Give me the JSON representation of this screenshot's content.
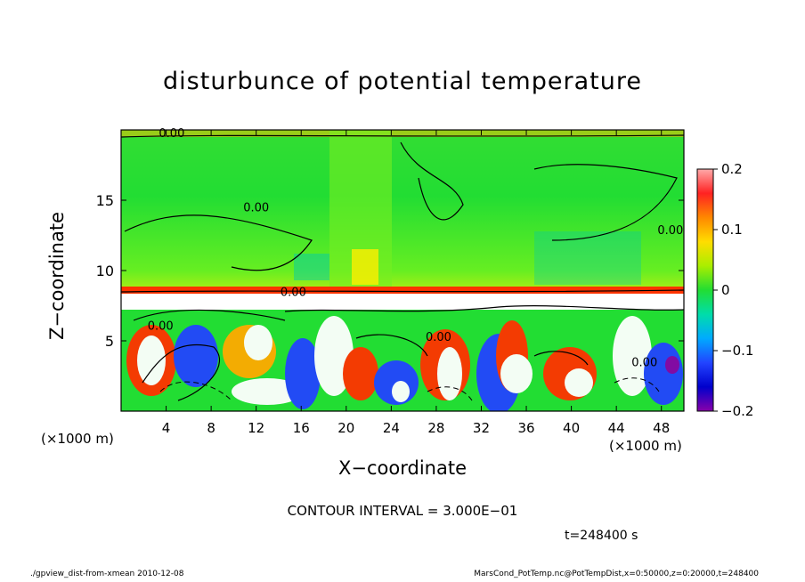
{
  "chart_data": {
    "type": "heatmap",
    "title": "disturbunce of potential temperature",
    "xlabel": "X−coordinate",
    "ylabel": "Z−coordinate",
    "x_unit_left": "(×1000 m)",
    "x_unit_right": "(×1000 m)",
    "xlim": [
      0,
      50
    ],
    "ylim": [
      0,
      20
    ],
    "xticks": [
      4,
      8,
      12,
      16,
      20,
      24,
      28,
      32,
      36,
      40,
      44,
      48
    ],
    "yticks": [
      5,
      10,
      15
    ],
    "colorbar": {
      "min": -0.2,
      "max": 0.2,
      "tick_values": [
        0.2,
        0.1,
        0,
        -0.1,
        -0.2
      ],
      "tick_labels": [
        "0.2",
        "0.1",
        "0",
        "−0.1",
        "−0.2"
      ]
    },
    "contour_labels": [
      "0.00",
      "0.00",
      "0.00",
      "0.00",
      "0.00",
      "0.00",
      "0.00"
    ],
    "contour_interval_text": "CONTOUR INTERVAL = 3.000E−01",
    "time_text": "t=248400 s"
  },
  "footer": {
    "left": "./gpview_dist-from-xmean   2010-12-08",
    "right": "MarsCond_PotTemp.nc@PotTempDist,x=0:50000,z=0:20000,t=248400"
  },
  "colors": {
    "background_field": "#22dd33",
    "colorbar_top": "#ffaaaa",
    "colorbar_bottom": "#8800aa"
  }
}
